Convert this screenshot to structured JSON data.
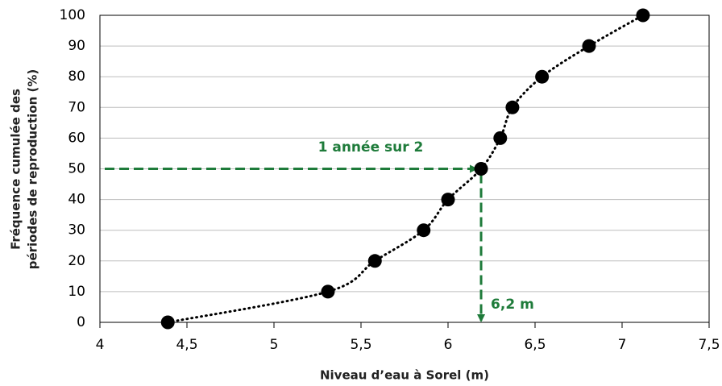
{
  "chart_data": {
    "type": "scatter",
    "xlabel": "Niveau d’eau à Sorel (m)",
    "ylabel": [
      "Fréquence cumulée des",
      "périodes de reproduction (%)"
    ],
    "series": [
      {
        "name": "Fréquence cumulée",
        "color": "#000000",
        "x": [
          4.39,
          5.31,
          5.58,
          5.86,
          6.0,
          6.19,
          6.3,
          6.37,
          6.54,
          6.81,
          7.12
        ],
        "values": [
          0,
          10,
          20,
          30,
          40,
          50,
          60,
          70,
          80,
          90,
          100
        ]
      }
    ],
    "xlim": [
      4,
      7.5
    ],
    "xticks": [
      4,
      {
        "value": 4.5,
        "label": "4,5"
      },
      5,
      {
        "value": 5.5,
        "label": "5,5"
      },
      6,
      {
        "value": 6.5,
        "label": "6,5"
      },
      7,
      {
        "value": 7.5,
        "label": "7,5"
      }
    ],
    "ylim": [
      0,
      100
    ],
    "yticks": [
      0,
      10,
      20,
      30,
      40,
      50,
      60,
      70,
      80,
      90,
      100
    ],
    "grid": true,
    "trend_line": true,
    "annotations": [
      {
        "text": "1 année sur 2",
        "color": "#1e7b3a"
      },
      {
        "text": "6,2 m",
        "color": "#1e7b3a"
      }
    ]
  }
}
